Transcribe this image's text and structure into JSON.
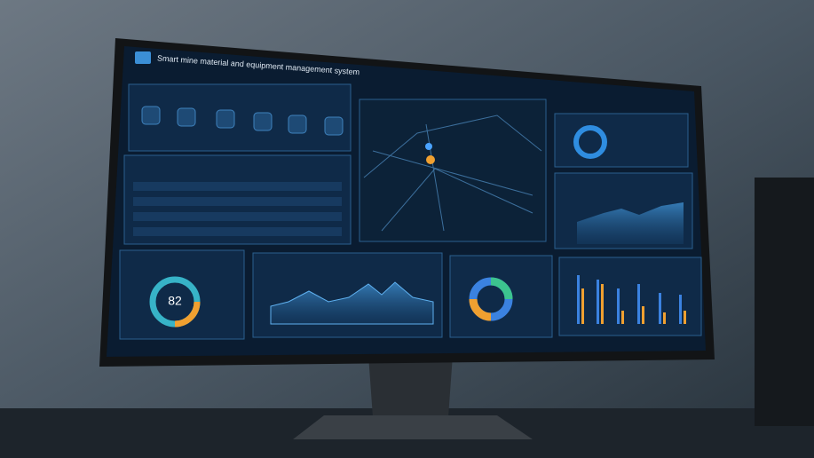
{
  "screen": {
    "title": "Smart mine material and equipment management system",
    "status_donut": {
      "center_label": "82"
    }
  }
}
